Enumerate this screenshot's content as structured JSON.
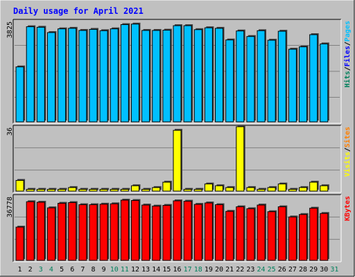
{
  "colors": {
    "background": "#C0C0C0",
    "panel": "#C0C0C0",
    "title": "#0000FF",
    "grid": "#808080",
    "bar_outline": "#000000",
    "hits": "#00805C",
    "files": "#0000FF",
    "pages": "#00C0FF",
    "visits": "#FFFF00",
    "sites": "#FF8000",
    "kbytes": "#FF0000",
    "axis_text": "#000000",
    "weekend_label": "#00805C"
  },
  "chart_data": {
    "type": "bar",
    "title": "Daily usage for April 2021",
    "days": [
      "1",
      "2",
      "3",
      "4",
      "5",
      "6",
      "7",
      "8",
      "9",
      "10",
      "11",
      "12",
      "13",
      "14",
      "15",
      "16",
      "17",
      "18",
      "19",
      "20",
      "21",
      "22",
      "23",
      "24",
      "25",
      "26",
      "27",
      "28",
      "29",
      "30",
      "31"
    ],
    "weekend_days": [
      "3",
      "4",
      "10",
      "11",
      "17",
      "18",
      "24",
      "25",
      "31"
    ],
    "panels": [
      {
        "id": "top",
        "max_label": "3825",
        "ylim": [
          0,
          3825
        ],
        "legend": [
          {
            "text": "Hits",
            "color_key": "hits"
          },
          {
            "text": "/",
            "color_key": "axis_text"
          },
          {
            "text": "Files",
            "color_key": "files"
          },
          {
            "text": "/",
            "color_key": "axis_text"
          },
          {
            "text": "Pages",
            "color_key": "pages"
          }
        ],
        "series": [
          {
            "name": "Pages",
            "color_key": "pages",
            "values": [
              2080,
              3600,
              3580,
              3380,
              3520,
              3540,
              3460,
              3500,
              3450,
              3520,
              3680,
              3700,
              3460,
              3460,
              3470,
              3640,
              3640,
              3490,
              3560,
              3540,
              3100,
              3440,
              3230,
              3450,
              3090,
              3430,
              2750,
              2840,
              3300,
              2950,
              null
            ]
          }
        ]
      },
      {
        "id": "middle",
        "max_label": "36",
        "ylim": [
          0,
          36
        ],
        "legend": [
          {
            "text": "Visits",
            "color_key": "visits"
          },
          {
            "text": "/",
            "color_key": "axis_text"
          },
          {
            "text": "Sites",
            "color_key": "sites"
          }
        ],
        "series": [
          {
            "name": "Visits",
            "color_key": "visits",
            "values": [
              6,
              1,
              1,
              1,
              1,
              2,
              1,
              1,
              1,
              1,
              1,
              3,
              1,
              2,
              5,
              34,
              1,
              1,
              4,
              3,
              2,
              36,
              2,
              1,
              2,
              4,
              1,
              2,
              5,
              3,
              null
            ]
          }
        ]
      },
      {
        "id": "bottom",
        "max_label": "36778",
        "ylim": [
          0,
          36778
        ],
        "legend": [
          {
            "text": "KBytes",
            "color_key": "kbytes"
          }
        ],
        "series": [
          {
            "name": "KBytes",
            "color_key": "kbytes",
            "values": [
              19000,
              33500,
              33200,
              30000,
              32600,
              33000,
              31800,
              31800,
              32100,
              32300,
              34400,
              34200,
              31600,
              31000,
              31400,
              34000,
              33800,
              32000,
              32800,
              31800,
              28000,
              30600,
              29500,
              31600,
              27800,
              30600,
              24800,
              26200,
              29800,
              26800,
              null
            ]
          }
        ]
      }
    ]
  }
}
